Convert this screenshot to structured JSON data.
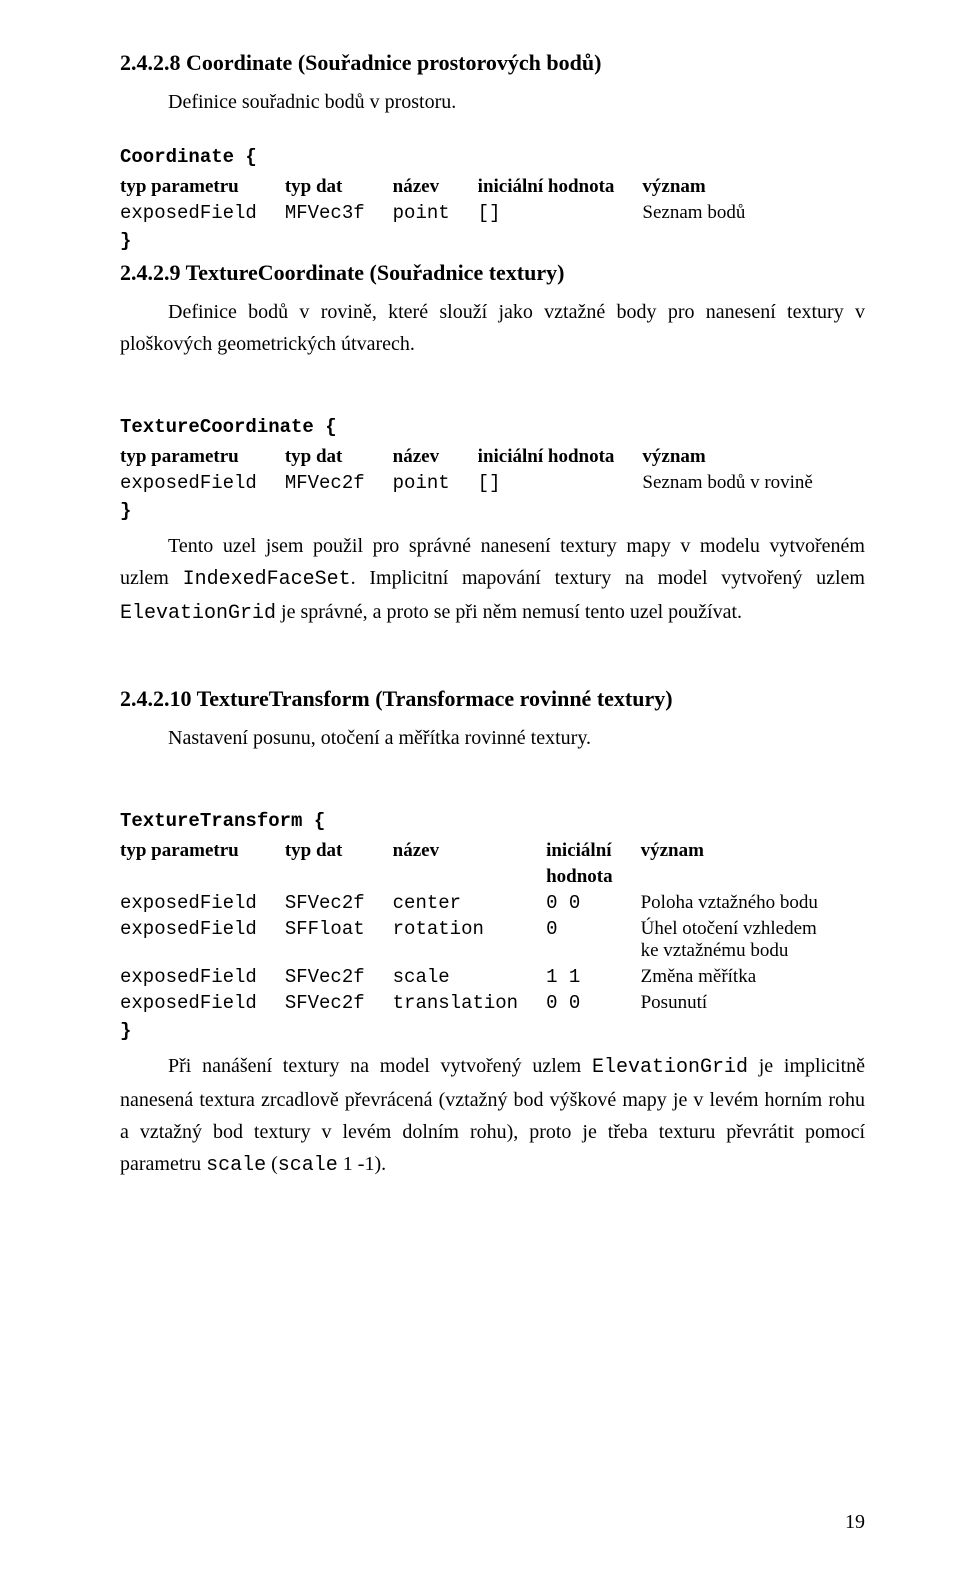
{
  "s1": {
    "heading": "2.4.2.8   Coordinate (Souřadnice prostorových bodů)",
    "intro": "Definice souřadnic bodů v prostoru.",
    "codeOpen": "Coordinate {",
    "headers": {
      "c0": "typ parametru",
      "c1": "typ dat",
      "c2": "název",
      "c3": "iniciální hodnota",
      "c4": "význam"
    },
    "row": {
      "c0": "exposedField",
      "c1": "MFVec3f",
      "c2": "point",
      "c3": "[]",
      "c4": "Seznam bodů"
    },
    "codeClose": "}"
  },
  "s2": {
    "heading": "2.4.2.9   TextureCoordinate (Souřadnice textury)",
    "intro": "Definice bodů v rovině, které slouží jako vztažné body pro nanesení textury v ploškových geometrických útvarech.",
    "codeOpen": "TextureCoordinate {",
    "headers": {
      "c0": "typ parametru",
      "c1": "typ dat",
      "c2": "název",
      "c3": "iniciální hodnota",
      "c4": "význam"
    },
    "row": {
      "c0": "exposedField",
      "c1": "MFVec2f",
      "c2": "point",
      "c3": "[]",
      "c4": "Seznam bodů v rovině"
    },
    "codeClose": "}",
    "para1a": "Tento uzel jsem použil pro správné nanesení textury mapy v modelu vytvořeném uzlem ",
    "para1code1": "IndexedFaceSet",
    "para1b": ". Implicitní mapování textury na model vytvořený uzlem ",
    "para1code2": "ElevationGrid",
    "para1c": " je správné, a proto se při něm nemusí tento uzel používat."
  },
  "s3": {
    "heading": "2.4.2.10 TextureTransform (Transformace rovinné textury)",
    "intro": "Nastavení posunu, otočení a měřítka rovinné textury.",
    "codeOpen": "TextureTransform {",
    "headers": {
      "c0": "typ parametru",
      "c1": "typ dat",
      "c2": "název",
      "c3a": "iniciální",
      "c3b": "hodnota",
      "c4": "význam"
    },
    "rows": [
      {
        "c0": "exposedField",
        "c1": "SFVec2f",
        "c2": "center",
        "c3": "0 0",
        "c4": "Poloha vztažného bodu"
      },
      {
        "c0": "exposedField",
        "c1": "SFFloat",
        "c2": "rotation",
        "c3": "0",
        "c4": "Úhel otočení vzhledem ke vztažnému bodu"
      },
      {
        "c0": "exposedField",
        "c1": "SFVec2f",
        "c2": "scale",
        "c3": "1 1",
        "c4": "Změna měřítka"
      },
      {
        "c0": "exposedField",
        "c1": "SFVec2f",
        "c2": "translation",
        "c3": "0 0",
        "c4": "Posunutí"
      }
    ],
    "codeClose": "}",
    "para1a": "Při nanášení textury na model vytvořený uzlem ",
    "para1code1": "ElevationGrid",
    "para1b": " je implicitně nanesená textura zrcadlově převrácená (vztažný bod výškové mapy je v levém horním rohu a vztažný bod textury v levém dolním rohu), proto je třeba texturu převrátit pomocí parametru ",
    "para1code2": "scale",
    "para1c": " (",
    "para1code3": "scale",
    "para1d": " 1 -1)."
  },
  "pageNumber": "19"
}
